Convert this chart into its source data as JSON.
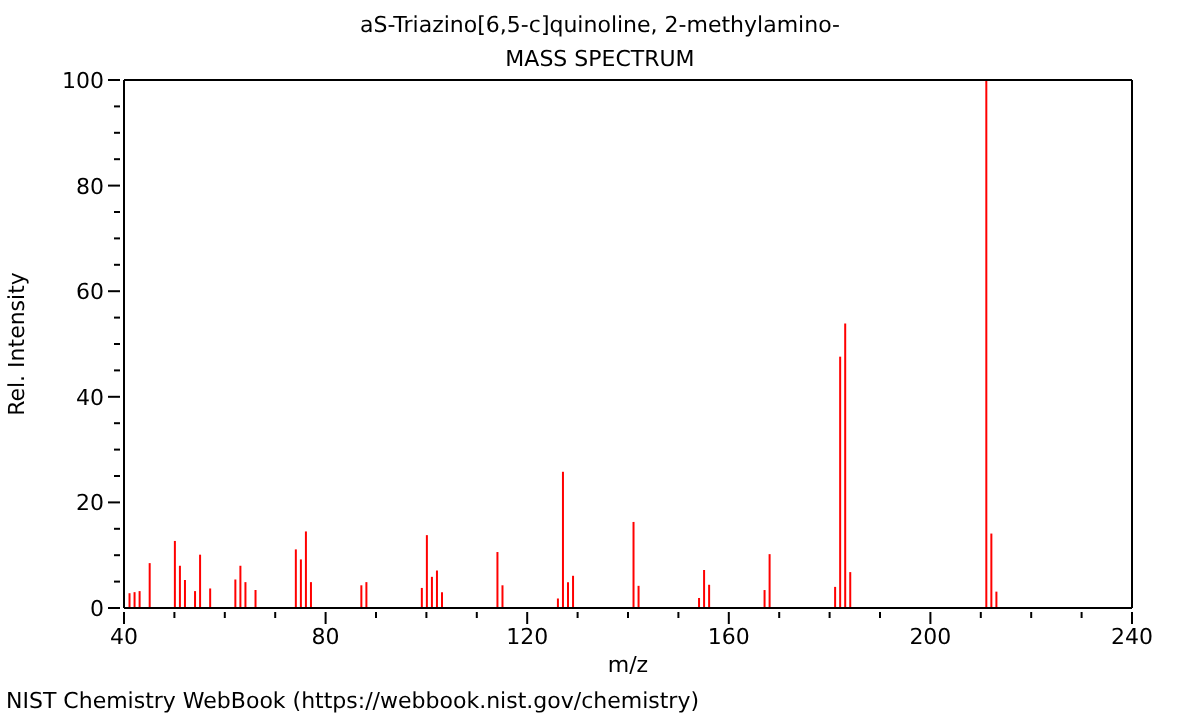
{
  "chart_data": {
    "type": "bar",
    "title": "aS-Triazino[6,5-c]quinoline, 2-methylamino-",
    "subtitle": "MASS SPECTRUM",
    "xlabel": "m/z",
    "ylabel": "Rel. Intensity",
    "annotations": [
      "NIST Chemistry WebBook (https://webbook.nist.gov/chemistry)"
    ],
    "x": [
      41,
      42,
      43,
      45,
      50,
      51,
      52,
      54,
      55,
      57,
      62,
      63,
      64,
      66,
      74,
      75,
      76,
      77,
      87,
      88,
      99,
      100,
      101,
      102,
      103,
      114,
      115,
      126,
      127,
      128,
      129,
      141,
      142,
      154,
      155,
      156,
      167,
      168,
      181,
      182,
      183,
      184,
      211,
      212,
      213
    ],
    "values": [
      2.8,
      3.0,
      3.2,
      8.5,
      12.7,
      8.0,
      5.3,
      3.2,
      10.1,
      3.7,
      5.4,
      8.0,
      4.9,
      3.4,
      11.1,
      9.2,
      14.5,
      4.9,
      4.3,
      4.9,
      3.8,
      13.8,
      5.9,
      7.1,
      3.0,
      10.6,
      4.3,
      1.8,
      25.8,
      4.9,
      6.1,
      16.3,
      4.2,
      1.9,
      7.2,
      4.4,
      3.4,
      10.2,
      4.0,
      47.6,
      53.9,
      6.8,
      100,
      14.1,
      3.1
    ],
    "color": "#ff0000",
    "xlim": [
      40,
      240
    ],
    "xticks": [
      40,
      {
        "value": 50,
        "label": null
      },
      {
        "value": 60,
        "label": null
      },
      {
        "value": 70,
        "label": null
      },
      80,
      {
        "value": 90,
        "label": null
      },
      {
        "value": 100,
        "label": null
      },
      {
        "value": 110,
        "label": null
      },
      120,
      {
        "value": 130,
        "label": null
      },
      {
        "value": 140,
        "label": null
      },
      {
        "value": 150,
        "label": null
      },
      160,
      {
        "value": 170,
        "label": null
      },
      {
        "value": 180,
        "label": null
      },
      {
        "value": 190,
        "label": null
      },
      200,
      {
        "value": 210,
        "label": null
      },
      {
        "value": 220,
        "label": null
      },
      {
        "value": 230,
        "label": null
      },
      240
    ],
    "ylim": [
      0,
      100
    ],
    "yticks": [
      0,
      {
        "value": 5,
        "label": null
      },
      {
        "value": 10,
        "label": null
      },
      {
        "value": 15,
        "label": null
      },
      20,
      {
        "value": 25,
        "label": null
      },
      {
        "value": 30,
        "label": null
      },
      {
        "value": 35,
        "label": null
      },
      40,
      {
        "value": 45,
        "label": null
      },
      {
        "value": 50,
        "label": null
      },
      {
        "value": 55,
        "label": null
      },
      60,
      {
        "value": 65,
        "label": null
      },
      {
        "value": 70,
        "label": null
      },
      {
        "value": 75,
        "label": null
      },
      80,
      {
        "value": 85,
        "label": null
      },
      {
        "value": 90,
        "label": null
      },
      {
        "value": 95,
        "label": null
      },
      100
    ],
    "grid": false,
    "legend": false
  }
}
